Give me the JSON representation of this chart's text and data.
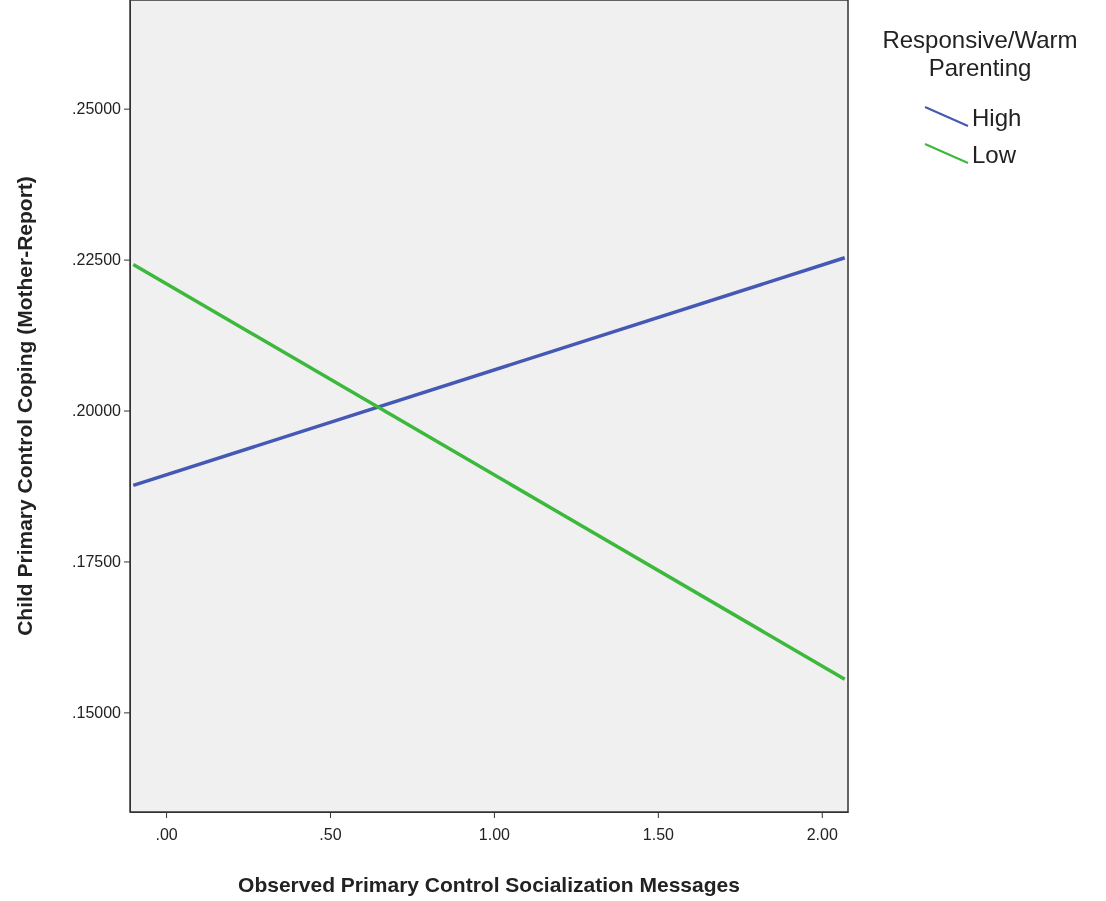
{
  "chart_data": {
    "type": "line",
    "xlabel": "Observed Primary Control Socialization Messages",
    "ylabel": "Child Primary Control Coping (Mother-Report)",
    "legend_title": "Responsive/Warm Parenting",
    "legend": "right",
    "xlim": [
      -0.11,
      2.08
    ],
    "ylim": [
      0.1335,
      0.268
    ],
    "xticks": [
      {
        "value": 0,
        "label": ".00"
      },
      {
        "value": 0.5,
        "label": ".50"
      },
      {
        "value": 1,
        "label": "1.00"
      },
      {
        "value": 1.5,
        "label": "1.50"
      },
      {
        "value": 2,
        "label": "2.00"
      }
    ],
    "yticks": [
      {
        "value": 0.15,
        "label": ".15000"
      },
      {
        "value": 0.175,
        "label": ".17500"
      },
      {
        "value": 0.2,
        "label": ".20000"
      },
      {
        "value": 0.225,
        "label": ".22500"
      },
      {
        "value": 0.25,
        "label": ".25000"
      }
    ],
    "grid": false,
    "line_style": "solid",
    "marker": "none",
    "x": [
      -0.1,
      2.07
    ],
    "series": [
      {
        "name": "High",
        "color": "#4458b4",
        "values": [
          0.1876,
          0.2253
        ]
      },
      {
        "name": "Low",
        "color": "#3cb83c",
        "values": [
          0.2242,
          0.1555
        ]
      }
    ]
  }
}
